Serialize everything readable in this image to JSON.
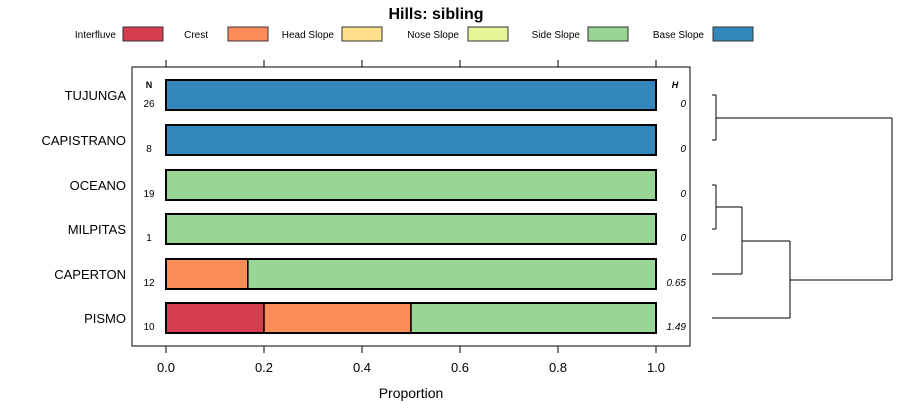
{
  "chart_data": {
    "type": "bar",
    "stacked": true,
    "orientation": "horizontal",
    "title": "Hills: sibling",
    "xlabel": "Proportion",
    "ylabel": "",
    "xlim": [
      0,
      1
    ],
    "x_ticks": [
      "0.0",
      "0.2",
      "0.4",
      "0.6",
      "0.8",
      "1.0"
    ],
    "x_tick_values": [
      0,
      0.2,
      0.4,
      0.6,
      0.8,
      1.0
    ],
    "legend_position": "top",
    "n_header": "N",
    "h_header": "H",
    "categories": [
      "TUJUNGA",
      "CAPISTRANO",
      "OCEANO",
      "MILPITAS",
      "CAPERTON",
      "PISMO"
    ],
    "n_values": [
      "26",
      "8",
      "19",
      "1",
      "12",
      "10"
    ],
    "h_values": [
      "0",
      "0",
      "0",
      "0",
      "0.65",
      "1.49"
    ],
    "series": [
      {
        "name": "Interfluve",
        "color": "#D53E4F",
        "values": [
          0,
          0,
          0,
          0,
          0,
          0.2
        ]
      },
      {
        "name": "Crest",
        "color": "#FC8D59",
        "values": [
          0,
          0,
          0,
          0,
          0.167,
          0.3
        ]
      },
      {
        "name": "Head Slope",
        "color": "#FEE08B",
        "values": [
          0,
          0,
          0,
          0,
          0,
          0
        ]
      },
      {
        "name": "Nose Slope",
        "color": "#E6F598",
        "values": [
          0,
          0,
          0,
          0,
          0,
          0
        ]
      },
      {
        "name": "Side Slope",
        "color": "#99D594",
        "values": [
          0,
          0,
          1,
          1,
          0.833,
          0.5
        ]
      },
      {
        "name": "Base Slope",
        "color": "#3288BD",
        "values": [
          1,
          1,
          0,
          0,
          0,
          0
        ]
      }
    ],
    "dendrogram": {
      "merges": [
        [
          "TUJUNGA",
          "CAPISTRANO"
        ],
        [
          "OCEANO",
          "MILPITAS"
        ],
        [
          "OCEANO+MILPITAS",
          "CAPERTON"
        ],
        [
          "OCEANO+MILPITAS+CAPERTON",
          "PISMO"
        ],
        [
          "TUJUNGA+CAPISTRANO",
          "rest"
        ]
      ]
    }
  }
}
